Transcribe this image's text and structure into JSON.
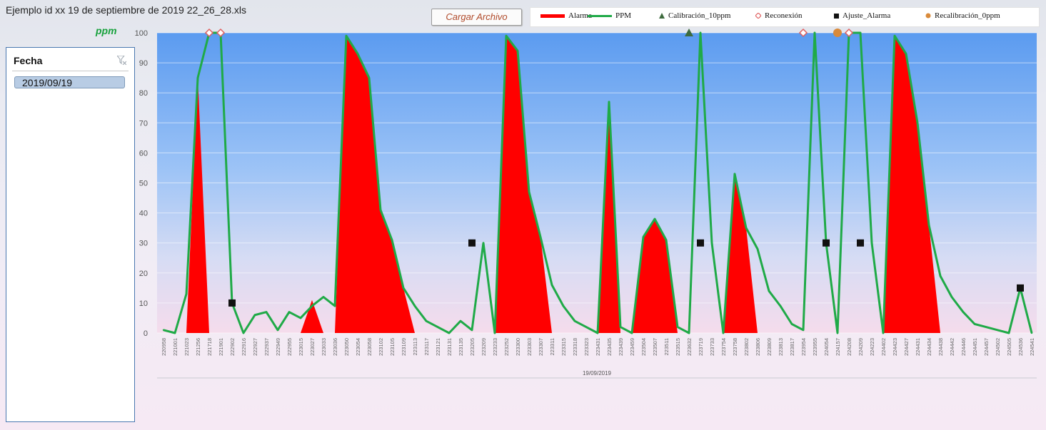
{
  "header": {
    "file_title": "Ejemplo id xx 19 de septiembre de 2019 22_26_28.xls",
    "load_button_label": "Cargar Archivo"
  },
  "slicer": {
    "title": "Fecha",
    "items": [
      "2019/09/19"
    ],
    "filter_icon": "clear-filter-icon"
  },
  "colors": {
    "alarm": "#ff0000",
    "ppm": "#1faa47",
    "calibration": "#3e6b3e",
    "reconnection": "#e06060",
    "adjustment": "#111111",
    "recalibration": "#d98a3a",
    "plot_top": "#5b9bf0",
    "plot_bottom": "#f5dcec"
  },
  "chart_data": {
    "type": "line",
    "title": "",
    "ylabel": "ppm",
    "xlabel": "19/09/2019",
    "ylim": [
      0,
      100
    ],
    "yticks": [
      0,
      10,
      20,
      30,
      40,
      50,
      60,
      70,
      80,
      90,
      100
    ],
    "categories": [
      "220958",
      "221001",
      "221023",
      "221256",
      "221718",
      "221901",
      "222902",
      "222916",
      "222927",
      "222937",
      "222949",
      "222955",
      "223015",
      "223027",
      "223033",
      "223036",
      "223050",
      "223054",
      "223058",
      "223102",
      "223105",
      "223109",
      "223113",
      "223117",
      "223121",
      "223131",
      "223135",
      "223205",
      "223209",
      "223233",
      "223252",
      "223300",
      "223303",
      "223307",
      "223311",
      "223315",
      "223318",
      "223323",
      "223431",
      "223435",
      "223439",
      "223459",
      "223504",
      "223507",
      "223511",
      "223515",
      "223632",
      "223719",
      "223733",
      "223754",
      "223758",
      "223802",
      "223806",
      "223809",
      "223813",
      "223817",
      "223954",
      "223955",
      "224054",
      "224157",
      "224208",
      "224209",
      "224223",
      "224402",
      "224423",
      "224427",
      "224431",
      "224434",
      "224438",
      "224442",
      "224446",
      "224451",
      "224457",
      "224502",
      "224505",
      "224536",
      "224541"
    ],
    "series": [
      {
        "name": "PPM",
        "values": [
          1,
          0,
          13,
          85,
          100,
          100,
          10,
          0,
          6,
          7,
          1,
          7,
          5,
          9,
          12,
          9,
          99,
          93,
          85,
          41,
          31,
          15,
          9,
          4,
          2,
          0,
          4,
          1,
          30,
          0,
          99,
          94,
          47,
          32,
          16,
          9,
          4,
          2,
          0,
          77,
          2,
          0,
          32,
          38,
          31,
          2,
          0,
          100,
          30,
          0,
          53,
          35,
          28,
          14,
          9,
          3,
          1,
          100,
          30,
          0,
          100,
          100,
          30,
          0,
          99,
          93,
          70,
          36,
          19,
          12,
          7,
          3,
          2,
          1,
          0,
          15,
          0
        ]
      },
      {
        "name": "Alarma",
        "values": [
          0,
          0,
          0,
          85,
          0,
          0,
          0,
          0,
          0,
          0,
          0,
          0,
          0,
          11,
          0,
          0,
          99,
          93,
          85,
          41,
          31,
          15,
          0,
          0,
          0,
          0,
          0,
          0,
          0,
          0,
          99,
          94,
          47,
          32,
          0,
          0,
          0,
          0,
          0,
          77,
          0,
          0,
          32,
          38,
          31,
          0,
          0,
          0,
          0,
          0,
          53,
          35,
          0,
          0,
          0,
          0,
          0,
          0,
          0,
          0,
          0,
          0,
          0,
          0,
          99,
          93,
          70,
          36,
          0,
          0,
          0,
          0,
          0,
          0,
          0,
          0,
          0
        ]
      }
    ],
    "markers": [
      {
        "name": "Calibración_10ppm",
        "points": [
          {
            "x": "223632",
            "y": 100
          }
        ]
      },
      {
        "name": "Reconexión",
        "points": [
          {
            "x": "221718",
            "y": 100
          },
          {
            "x": "221901",
            "y": 100
          },
          {
            "x": "223954",
            "y": 100
          },
          {
            "x": "224208",
            "y": 100
          }
        ]
      },
      {
        "name": "Ajuste_Alarma",
        "points": [
          {
            "x": "222902",
            "y": 10
          },
          {
            "x": "223205",
            "y": 30
          },
          {
            "x": "223719",
            "y": 30
          },
          {
            "x": "224054",
            "y": 30
          },
          {
            "x": "224209",
            "y": 30
          },
          {
            "x": "224536",
            "y": 15
          }
        ]
      },
      {
        "name": "Recalibración_0ppm",
        "points": [
          {
            "x": "224157",
            "y": 100
          }
        ]
      }
    ],
    "legend": {
      "position": "top",
      "items": [
        "Alarma",
        "PPM",
        "Calibración_10ppm",
        "Reconexión",
        "Ajuste_Alarma",
        "Recalibración_0ppm"
      ]
    },
    "grid": true
  }
}
